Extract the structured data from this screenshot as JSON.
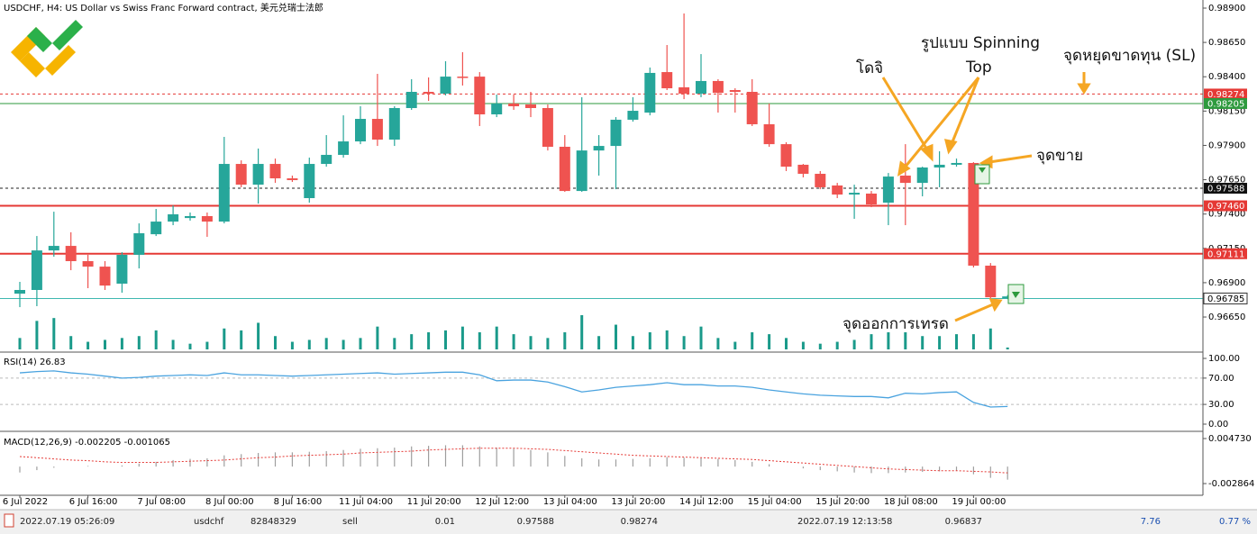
{
  "header": {
    "title": "USDCHF, H4:  US Dollar vs Swiss Franc Forward contract, 美元兑瑞士法郎"
  },
  "chart_data": [
    {
      "type": "candlestick",
      "categories": [
        "6 Jul 2022",
        null,
        null,
        null,
        "6 Jul 16:00",
        null,
        null,
        null,
        "7 Jul 08:00",
        null,
        null,
        null,
        "8 Jul 00:00",
        null,
        null,
        null,
        "8 Jul 16:00",
        null,
        null,
        null,
        "11 Jul 04:00",
        null,
        null,
        null,
        "11 Jul 20:00",
        null,
        null,
        null,
        "12 Jul 12:00",
        null,
        null,
        null,
        "13 Jul 04:00",
        null,
        null,
        null,
        "13 Jul 20:00",
        null,
        null,
        null,
        "14 Jul 12:00",
        null,
        null,
        null,
        "15 Jul 04:00",
        null,
        null,
        null,
        "15 Jul 20:00",
        null,
        null,
        null,
        "18 Jul 08:00",
        null,
        null,
        null,
        "19 Jul 00:00",
        null,
        null
      ],
      "open": [
        0.9682,
        0.96847,
        0.97135,
        0.97168,
        0.97057,
        0.97017,
        0.96893,
        0.97103,
        0.97253,
        0.97345,
        0.97371,
        0.97385,
        0.97345,
        0.97765,
        0.97614,
        0.97765,
        0.9766,
        0.97516,
        0.97765,
        0.97831,
        0.97929,
        0.98093,
        0.97942,
        0.98172,
        0.9829,
        0.98277,
        0.98401,
        0.98401,
        0.98126,
        0.98205,
        0.98198,
        0.98172,
        0.9789,
        0.97568,
        0.97863,
        0.97896,
        0.98087,
        0.98139,
        0.98434,
        0.98323,
        0.98277,
        0.98369,
        0.98303,
        0.9829,
        0.98054,
        0.97909,
        0.97759,
        0.97693,
        0.97608,
        0.97542,
        0.97549,
        0.97483,
        0.9768,
        0.97627,
        0.97739,
        0.97759,
        0.97772,
        0.97024,
        0.96785
      ],
      "high": [
        0.96906,
        0.9724,
        0.97417,
        0.97267,
        0.97103,
        0.97057,
        0.97122,
        0.97332,
        0.97437,
        0.97463,
        0.97411,
        0.97411,
        0.97962,
        0.97791,
        0.97877,
        0.97804,
        0.9768,
        0.97811,
        0.97975,
        0.98119,
        0.98185,
        0.98421,
        0.98185,
        0.98382,
        0.98395,
        0.98513,
        0.98579,
        0.98434,
        0.9827,
        0.9827,
        0.9829,
        0.98198,
        0.97975,
        0.98251,
        0.97975,
        0.98106,
        0.98251,
        0.98467,
        0.98631,
        0.98861,
        0.98565,
        0.98382,
        0.98316,
        0.98382,
        0.98205,
        0.97923,
        0.97765,
        0.97713,
        0.97627,
        0.97614,
        0.97568,
        0.97699,
        0.97909,
        0.97745,
        0.97857,
        0.97804,
        0.97778,
        0.97043,
        0.9681
      ],
      "low": [
        0.96722,
        0.96729,
        0.97089,
        0.96991,
        0.9686,
        0.96847,
        0.96827,
        0.97004,
        0.9724,
        0.97319,
        0.97352,
        0.97234,
        0.97332,
        0.97595,
        0.97476,
        0.97627,
        0.97634,
        0.97483,
        0.97745,
        0.97811,
        0.97909,
        0.97896,
        0.97896,
        0.98159,
        0.98224,
        0.98264,
        0.98336,
        0.98041,
        0.98106,
        0.98159,
        0.98106,
        0.97863,
        0.97562,
        0.97562,
        0.9768,
        0.97581,
        0.98073,
        0.98119,
        0.98303,
        0.98237,
        0.98251,
        0.98139,
        0.98139,
        0.98041,
        0.9789,
        0.97713,
        0.97667,
        0.97581,
        0.97516,
        0.97365,
        0.9745,
        0.97319,
        0.97319,
        0.97529,
        0.97595,
        0.97745,
        0.97011,
        0.96781,
        0.9678
      ],
      "close": [
        0.96847,
        0.97135,
        0.97168,
        0.97057,
        0.97017,
        0.96879,
        0.97103,
        0.9726,
        0.97345,
        0.97398,
        0.97385,
        0.97345,
        0.97765,
        0.97614,
        0.97765,
        0.9766,
        0.97647,
        0.97765,
        0.97831,
        0.97929,
        0.98093,
        0.97942,
        0.98172,
        0.9829,
        0.98277,
        0.98401,
        0.98395,
        0.98126,
        0.98205,
        0.98185,
        0.98172,
        0.9789,
        0.97568,
        0.97863,
        0.97896,
        0.98087,
        0.98152,
        0.98428,
        0.98316,
        0.98277,
        0.98369,
        0.98283,
        0.9829,
        0.98054,
        0.97909,
        0.97745,
        0.97693,
        0.97595,
        0.97542,
        0.97555,
        0.9747,
        0.97673,
        0.97627,
        0.97739,
        0.97759,
        0.97772,
        0.97024,
        0.96794,
        0.968
      ],
      "volume": [
        12,
        30,
        33,
        14,
        8,
        10,
        12,
        14,
        20,
        10,
        6,
        8,
        22,
        20,
        28,
        14,
        8,
        10,
        12,
        10,
        12,
        24,
        12,
        16,
        18,
        20,
        24,
        18,
        24,
        16,
        14,
        12,
        18,
        36,
        14,
        26,
        14,
        18,
        20,
        14,
        24,
        12,
        8,
        18,
        16,
        12,
        8,
        6,
        8,
        10,
        16,
        18,
        18,
        14,
        14,
        16,
        16,
        22,
        2
      ],
      "up_color": "#26a69a",
      "down_color": "#ef5350",
      "volume_color": "#1a9a8a",
      "ylim": [
        0.96401,
        0.98959
      ],
      "yticks": [
        {
          "value": 0.989,
          "label": "0.98900"
        },
        {
          "value": 0.9865,
          "label": "0.98650"
        },
        {
          "value": 0.984,
          "label": "0.98400"
        },
        {
          "value": 0.9815,
          "label": "0.98150"
        },
        {
          "value": 0.979,
          "label": "0.97900"
        },
        {
          "value": 0.9765,
          "label": "0.97650"
        },
        {
          "value": 0.974,
          "label": "0.97400"
        },
        {
          "value": 0.9715,
          "label": "0.97150"
        },
        {
          "value": 0.969,
          "label": "0.96900"
        },
        {
          "value": 0.9665,
          "label": "0.96650"
        }
      ],
      "levels": [
        {
          "value": 0.98274,
          "label": "0.98274",
          "color": "#e53935",
          "style": "dashed",
          "tag": "#e53935"
        },
        {
          "value": 0.98205,
          "label": "0.98205",
          "color": "#2e9a3e",
          "style": "solid",
          "tag": "#2e9a3e"
        },
        {
          "value": 0.97588,
          "label": "0.97588",
          "color": "#222222",
          "style": "dashed",
          "tag": "#111111"
        },
        {
          "value": 0.9746,
          "label": "0.97460",
          "color": "#e53935",
          "style": "solid",
          "tag": "#e53935"
        },
        {
          "value": 0.97111,
          "label": "0.97111",
          "color": "#e53935",
          "style": "solid",
          "tag": "#e53935"
        },
        {
          "value": 0.96785,
          "label": "0.96785",
          "color": "#3fb8b0",
          "style": "solid",
          "tag": "#ffffff"
        }
      ],
      "annotations": [
        "โดจิ",
        "รูปแบบ Spinning",
        "Top",
        "จุดหยุดขาดทุน (SL)",
        "จุดขาย",
        "จุดออกการเทรด"
      ]
    },
    {
      "type": "line",
      "title": "RSI(14) 26.83",
      "color": "#4aa3df",
      "values": [
        78,
        80,
        81,
        78,
        76,
        73,
        70,
        71,
        73,
        74,
        75,
        74,
        78,
        75,
        75,
        74,
        73,
        74,
        75,
        76,
        77,
        78,
        76,
        77,
        78,
        79,
        79,
        75,
        66,
        67,
        67,
        64,
        57,
        49,
        52,
        56,
        58,
        60,
        63,
        60,
        60,
        58,
        58,
        56,
        52,
        49,
        46,
        44,
        43,
        42,
        42,
        40,
        47,
        46,
        48,
        49,
        33,
        26,
        26.83
      ],
      "ylim": [
        -9.6,
        108.2
      ],
      "yticks": [
        {
          "value": 100,
          "label": "100.00"
        },
        {
          "value": 70,
          "label": "70.00"
        },
        {
          "value": 30,
          "label": "30.00"
        },
        {
          "value": 0,
          "label": "0.00"
        }
      ],
      "levels": [
        70,
        30
      ]
    },
    {
      "type": "macd",
      "title": "MACD(12,26,9) -0.002205 -0.001065",
      "color": "#9e9e9e",
      "signal_color": "#e53935",
      "values": [
        -0.001,
        -0.0006,
        -0.0002,
        0.0,
        0.0001,
        0.0,
        0.0002,
        0.0005,
        0.0008,
        0.0011,
        0.0013,
        0.0014,
        0.0019,
        0.0021,
        0.0023,
        0.0024,
        0.0024,
        0.0025,
        0.0026,
        0.0028,
        0.003,
        0.0031,
        0.0032,
        0.0034,
        0.0035,
        0.0036,
        0.0036,
        0.0034,
        0.0032,
        0.003,
        0.0028,
        0.0024,
        0.0018,
        0.0014,
        0.0012,
        0.0012,
        0.0013,
        0.0014,
        0.0016,
        0.0015,
        0.0014,
        0.0013,
        0.0011,
        0.0008,
        0.0004,
        0.0,
        -0.0003,
        -0.0006,
        -0.0008,
        -0.001,
        -0.0011,
        -0.0011,
        -0.001,
        -0.0009,
        -0.0008,
        -0.0007,
        -0.0013,
        -0.0019,
        -0.002205
      ],
      "signal": [
        0.0017,
        0.0015,
        0.0013,
        0.0011,
        0.001,
        0.0008,
        0.0007,
        0.0007,
        0.0007,
        0.0008,
        0.0009,
        0.001,
        0.0011,
        0.0013,
        0.0015,
        0.0016,
        0.0018,
        0.0019,
        0.002,
        0.0021,
        0.0023,
        0.0024,
        0.0025,
        0.0026,
        0.0028,
        0.0029,
        0.003,
        0.0031,
        0.0031,
        0.0031,
        0.003,
        0.0029,
        0.0027,
        0.0025,
        0.0023,
        0.0021,
        0.0019,
        0.0018,
        0.0017,
        0.0016,
        0.0015,
        0.0014,
        0.0013,
        0.0012,
        0.001,
        0.0008,
        0.0006,
        0.0004,
        0.0002,
        0.0,
        -0.0002,
        -0.0004,
        -0.0005,
        -0.0006,
        -0.0007,
        -0.0007,
        -0.0008,
        -0.0009,
        -0.001065
      ],
      "ylim": [
        -0.00484,
        0.00564
      ],
      "yticks": [
        {
          "value": 0.00473,
          "label": "0.004730"
        },
        {
          "value": -0.002864,
          "label": "-0.002864"
        }
      ]
    }
  ],
  "trade_bar": [
    "2022.07.19 05:26:09",
    "usdchf",
    "82848329",
    "sell",
    "0.01",
    "0.97588",
    "0.98274",
    "2022.07.19 12:13:58",
    "0.96837",
    "7.76",
    "0.77 %"
  ]
}
